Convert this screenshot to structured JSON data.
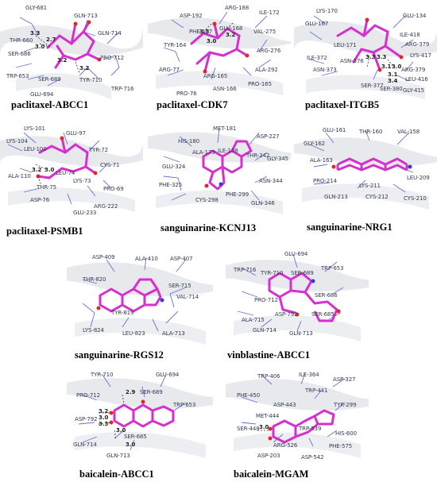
{
  "colors": {
    "ligand": "#d62fd0",
    "residue": "#6a6fd8",
    "ribbon": "#e4e6ea",
    "oxygen": "#e02828",
    "nitrogen": "#3a3ad8"
  },
  "panels": [
    {
      "caption": "paclitaxel-ABCC1",
      "residues": [
        "GLY-681",
        "GLN-713",
        "THR-660",
        "GLN-714",
        "SER-686",
        "PRO-712",
        "TRP-653",
        "SER-689",
        "TYR-710",
        "GLU-694",
        "TRP-716"
      ],
      "distances": [
        "3.3",
        "2.7",
        "3.0",
        "3.2",
        "3.2"
      ]
    },
    {
      "caption": "paclitaxel-CDK7",
      "residues": [
        "ASP-192",
        "ARG-188",
        "ILE-172",
        "PHE-167",
        "GLU-168",
        "VAL-275",
        "TYR-164",
        "ARG-276",
        "ARG-77",
        "ARG-165",
        "ALA-292",
        "PRO-76",
        "ASN-166",
        "PRO-165"
      ],
      "distances": [
        "3.3",
        "3.2",
        "3.0"
      ]
    },
    {
      "caption": "paclitaxel-ITGB5",
      "residues": [
        "LYS-170",
        "GLU-134",
        "GLU-167",
        "ILE-418",
        "LEU-171",
        "ARG-379",
        "ILE-372",
        "ASN-376",
        "LYS-417",
        "ASN-373",
        "ARG-379",
        "LEU-416",
        "SER-377",
        "SER-380",
        "GLY-415"
      ],
      "distances": [
        "3.3",
        "3.3",
        "3.1",
        "3.0",
        "3.1",
        "3.4"
      ]
    },
    {
      "caption": "paclitaxel-PSMB1",
      "residues": [
        "LYS-101",
        "GLU-97",
        "LYS-104",
        "LEU-100",
        "TYR-72",
        "CYS-71",
        "ALA-110",
        "LEU-74",
        "THR-75",
        "LYS-73",
        "PRO-69",
        "ASP-76",
        "ARG-222",
        "GLU-233"
      ],
      "distances": [
        "3.2",
        "3.0"
      ]
    },
    {
      "caption": "sanguinarine-KCNJ13",
      "residues": [
        "MET-181",
        "ASP-227",
        "HIS-180",
        "ILE-188",
        "ALA-179",
        "THR-242",
        "GLY-345",
        "GLU-324",
        "ASN-344",
        "PHE-325",
        "PHE-299",
        "CYS-298",
        "GLN-346"
      ],
      "distances": []
    },
    {
      "caption": "sanguinarine-NRG1",
      "residues": [
        "GLU-161",
        "THR-160",
        "VAL-158",
        "GLY-162",
        "ALA-163",
        "LEU-209",
        "PRO-214",
        "LYS-211",
        "GLN-213",
        "CYS-212",
        "CYS-210"
      ],
      "distances": []
    },
    {
      "caption": "sanguinarine-RGS12",
      "residues": [
        "ASP-409",
        "ALA-410",
        "ASP-407",
        "THR-820",
        "SER-715",
        "TYR-819",
        "VAL-714",
        "LYS-824",
        "LEU-823",
        "ALA-713"
      ],
      "distances": []
    },
    {
      "caption": "vinblastine-ABCC1",
      "residues": [
        "GLU-694",
        "TRP-716",
        "TYR-710",
        "SER-689",
        "TRP-653",
        "PRO-712",
        "SER-686",
        "ALA-715",
        "ASP-792",
        "SER-685",
        "GLN-714",
        "GLN-713"
      ],
      "distances": []
    },
    {
      "caption": "baicalein-ABCC1",
      "residues": [
        "TYR-710",
        "GLU-694",
        "PRO-712",
        "SER-689",
        "TRP-653",
        "ASP-792",
        "SER-685",
        "GLN-714",
        "GLN-713"
      ],
      "distances": [
        "2.9",
        "3.2",
        "3.0",
        "3.3",
        "3.0",
        "3.0"
      ]
    },
    {
      "caption": "baicalein-MGAM",
      "residues": [
        "TRP-406",
        "ILE-364",
        "ASP-327",
        "PHE-450",
        "TRP-441",
        "ASP-443",
        "TYR-299",
        "MET-444",
        "SER-448",
        "TRP-539",
        "HIS-600",
        "ARG-526",
        "PHE-575",
        "ASP-203",
        "ASP-542"
      ],
      "distances": [
        "3.0"
      ]
    }
  ]
}
